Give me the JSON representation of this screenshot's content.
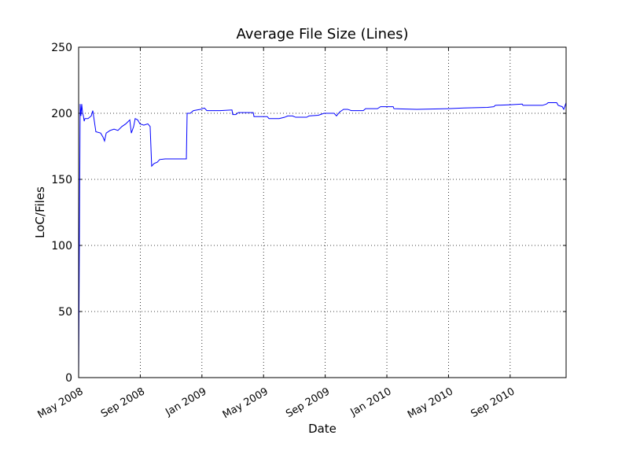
{
  "chart_data": {
    "type": "line",
    "title": "Average File Size (Lines)",
    "x_label": "Date",
    "y_label": "LoC/Files",
    "xlim": [
      0,
      31.63
    ],
    "ylim": [
      0,
      250
    ],
    "xticks": [
      {
        "value": 0,
        "label": "May 2008"
      },
      {
        "value": 4,
        "label": "Sep 2008"
      },
      {
        "value": 8,
        "label": "Jan 2009"
      },
      {
        "value": 12,
        "label": "May 2009"
      },
      {
        "value": 16,
        "label": "Sep 2009"
      },
      {
        "value": 20,
        "label": "Jan 2010"
      },
      {
        "value": 24,
        "label": "May 2010"
      },
      {
        "value": 28,
        "label": "Sep 2010"
      }
    ],
    "yticks": [
      0,
      50,
      100,
      150,
      200,
      250
    ],
    "grid": true,
    "series": [
      {
        "color": "#0000ff",
        "x": [
          0,
          0.1,
          0.15,
          0.2,
          0.26,
          0.31,
          0.36,
          0.41,
          0.61,
          0.82,
          0.92,
          1.02,
          1.12,
          1.43,
          1.58,
          1.68,
          1.79,
          2.04,
          2.3,
          2.55,
          2.81,
          3.06,
          3.32,
          3.42,
          3.57,
          3.67,
          3.83,
          3.98,
          4.23,
          4.49,
          4.64,
          4.74,
          4.9,
          5.1,
          5.26,
          5.61,
          6.99,
          7.04,
          7.24,
          7.45,
          7.91,
          8.16,
          8.32,
          9.18,
          9.95,
          10,
          10.2,
          10.36,
          11.33,
          11.38,
          12.24,
          12.35,
          13.01,
          13.37,
          13.57,
          13.88,
          14.08,
          14.8,
          14.95,
          15.56,
          15.92,
          16.58,
          16.73,
          16.94,
          17.19,
          17.45,
          17.7,
          18.47,
          18.62,
          19.39,
          19.59,
          20.41,
          20.46,
          21.94,
          23.98,
          25,
          26.53,
          26.94,
          27.04,
          28.06,
          28.78,
          28.83,
          30.1,
          30.36,
          30.46,
          31.02,
          31.12,
          31.38,
          31.48,
          31.63
        ],
        "values": [
          0,
          207,
          198,
          207,
          200,
          198,
          194,
          196,
          196,
          198,
          202,
          194,
          186,
          185,
          182,
          179,
          185,
          187,
          188,
          187,
          190,
          192,
          195,
          185,
          190,
          196,
          195,
          192,
          191,
          192,
          190,
          160,
          162,
          163,
          165,
          165.5,
          165.5,
          200,
          200,
          202,
          203,
          204,
          202,
          202,
          202.5,
          199,
          199,
          200.5,
          200.5,
          197.5,
          197.5,
          196,
          196,
          197,
          198,
          198,
          197,
          197,
          198,
          198.5,
          200,
          200,
          198,
          201,
          203,
          203,
          202,
          202,
          203.5,
          203.5,
          205,
          205,
          203.5,
          203,
          203.5,
          204,
          204.5,
          205,
          206,
          206.5,
          207,
          206,
          206,
          207,
          208,
          208,
          206,
          205,
          203,
          208
        ]
      }
    ]
  }
}
